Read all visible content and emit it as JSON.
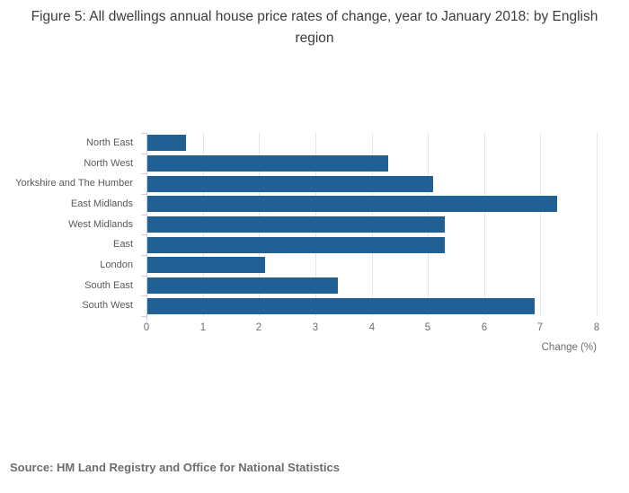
{
  "title": "Figure 5: All dwellings annual house price rates of change, year to January 2018: by English region",
  "source": "Source: HM Land Registry and Office for National Statistics",
  "chart_data": {
    "type": "bar",
    "orientation": "horizontal",
    "title": "Figure 5: All dwellings annual house price rates of change, year to January 2018: by English region",
    "categories": [
      "North East",
      "North West",
      "Yorkshire and The Humber",
      "East Midlands",
      "West Midlands",
      "East",
      "London",
      "South East",
      "South West"
    ],
    "values": [
      0.7,
      4.3,
      5.1,
      7.3,
      5.3,
      5.3,
      2.1,
      3.4,
      6.9
    ],
    "xlabel": "Change (%)",
    "ylabel": "",
    "xlim": [
      0,
      8
    ],
    "xticks": [
      0,
      1,
      2,
      3,
      4,
      5,
      6,
      7,
      8
    ],
    "grid": true,
    "legend": "none",
    "bar_color": "#206095",
    "gridline_color": "#e6e6e6",
    "axis_line_color": "#c9cfe8",
    "label_color": "#595959",
    "tick_label_color": "#6e6e6e"
  }
}
